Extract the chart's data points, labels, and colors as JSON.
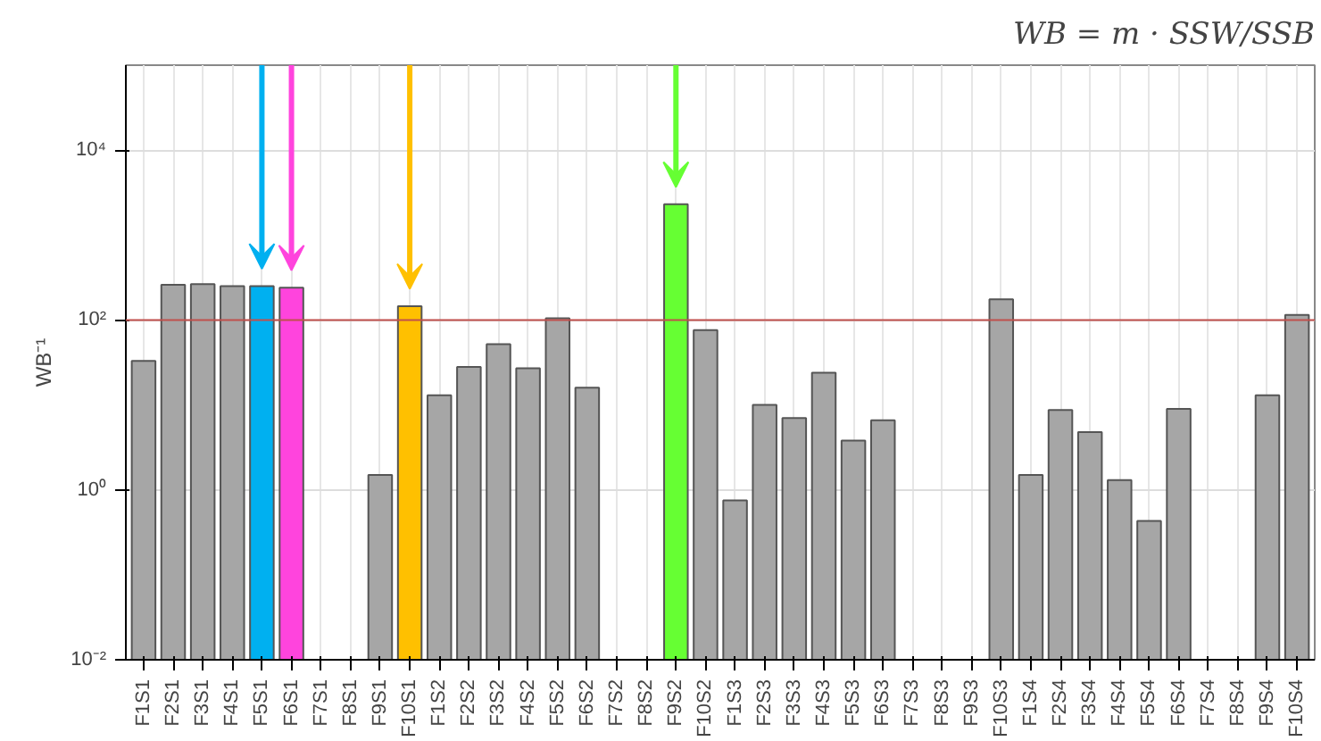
{
  "chart_data": {
    "type": "bar",
    "ylabel": "WB⁻¹",
    "log": true,
    "grid": true,
    "categories": [
      "F1S1",
      "F2S1",
      "F3S1",
      "F4S1",
      "F5S1",
      "F6S1",
      "F7S1",
      "F8S1",
      "F9S1",
      "F10S1",
      "F1S2",
      "F2S2",
      "F3S2",
      "F4S2",
      "F5S2",
      "F6S2",
      "F7S2",
      "F8S2",
      "F9S2",
      "F10S2",
      "F1S3",
      "F2S3",
      "F3S3",
      "F4S3",
      "F5S3",
      "F6S3",
      "F7S3",
      "F8S3",
      "F9S3",
      "F10S3",
      "F1S4",
      "F2S4",
      "F3S4",
      "F4S4",
      "F5S4",
      "F6S4",
      "F7S4",
      "F8S4",
      "F9S4",
      "F10S4"
    ],
    "values": [
      33,
      260,
      265,
      250,
      250,
      240,
      null,
      null,
      1.5,
      145,
      13,
      28,
      52,
      27,
      105,
      16,
      null,
      null,
      2300,
      76,
      0.75,
      10,
      7,
      24,
      3.8,
      6.6,
      null,
      null,
      null,
      175,
      1.5,
      8.7,
      4.8,
      1.3,
      0.43,
      9,
      null,
      null,
      13,
      115
    ],
    "colors": [
      "#a6a6a6",
      "#a6a6a6",
      "#a6a6a6",
      "#a6a6a6",
      "#00b0f0",
      "#ff44dd",
      "#a6a6a6",
      "#a6a6a6",
      "#a6a6a6",
      "#ffc000",
      "#a6a6a6",
      "#a6a6a6",
      "#a6a6a6",
      "#a6a6a6",
      "#a6a6a6",
      "#a6a6a6",
      "#a6a6a6",
      "#a6a6a6",
      "#66ff33",
      "#a6a6a6",
      "#a6a6a6",
      "#a6a6a6",
      "#a6a6a6",
      "#a6a6a6",
      "#a6a6a6",
      "#a6a6a6",
      "#a6a6a6",
      "#a6a6a6",
      "#a6a6a6",
      "#a6a6a6",
      "#a6a6a6",
      "#a6a6a6",
      "#a6a6a6",
      "#a6a6a6",
      "#a6a6a6",
      "#a6a6a6",
      "#a6a6a6",
      "#a6a6a6",
      "#a6a6a6",
      "#a6a6a6"
    ],
    "ylim": [
      0.01,
      100000
    ],
    "yticks": [
      {
        "value": 0.01,
        "label": "10⁻²"
      },
      {
        "value": 1,
        "label": "10⁰"
      },
      {
        "value": 100,
        "label": "10²"
      },
      {
        "value": 10000,
        "label": "10⁴"
      }
    ],
    "ref_lines": [
      {
        "axis": "y",
        "value": 100,
        "label": null,
        "color": "#c0504d"
      }
    ],
    "annotations": [
      "WB = m · SSW/SSB"
    ]
  }
}
